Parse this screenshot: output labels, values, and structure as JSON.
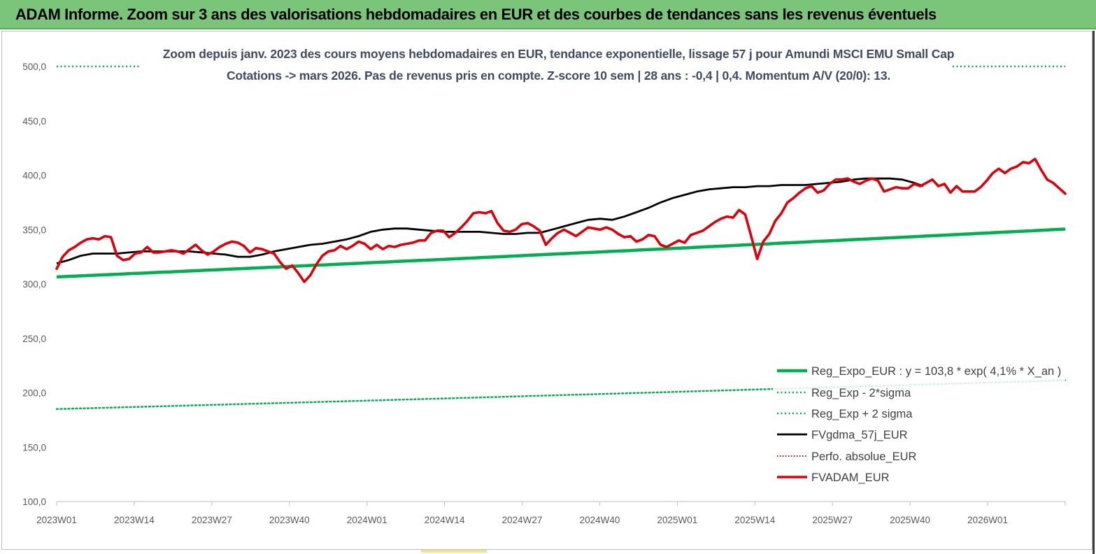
{
  "banner": {
    "title": "ADAM Informe. Zoom sur 3 ans des valorisations hebdomadaires en EUR et des courbes de tendances sans les revenus éventuels"
  },
  "colors": {
    "banner": "#7ac57a",
    "reg_expo": "#00b050",
    "gdma": "#000000",
    "fvadam": "#e0000c",
    "perfo": "#c00000",
    "subtitle": "#3f4b63"
  },
  "chart_data": {
    "type": "line",
    "title": "Zoom depuis janv. 2023 des cours moyens hebdomadaires en EUR, tendance exponentielle, lissage 57 j pour Amundi MSCI EMU Small Cap",
    "subtitle": "Cotations -> mars 2026. Pas de revenus pris en compte. Z-score 10 sem  | 28 ans : -0,4 | 0,4. Momentum A/V (20/0): 13.",
    "xlabel": "",
    "ylabel": "",
    "ylim": [
      100,
      500
    ],
    "y_ticks": [
      "100,0",
      "150,0",
      "200,0",
      "250,0",
      "300,0",
      "350,0",
      "400,0",
      "450,0",
      "500,0"
    ],
    "x_tick_labels": [
      "2023W01",
      "2023W14",
      "2023W27",
      "2023W40",
      "2024W01",
      "2024W14",
      "2024W27",
      "2024W40",
      "2025W01",
      "2025W14",
      "2025W27",
      "2025W40",
      "2026W01"
    ],
    "weeks_count": 170,
    "grid": false,
    "legend_position": "bottom-right",
    "series": [
      {
        "name": "Reg_Expo_EUR : y = 103,8 * exp( 4,1% *  X_an )",
        "style": "solid-thick",
        "start": [
          0,
          306.5
        ],
        "end": [
          169,
          350.5
        ]
      },
      {
        "name": "Reg_Exp - 2*sigma",
        "style": "dotted",
        "start": [
          0,
          185
        ],
        "end": [
          169,
          211.5
        ]
      },
      {
        "name": "Reg_Exp + 2 sigma",
        "style": "dotted",
        "start": [
          0,
          500
        ],
        "end": [
          169,
          500
        ]
      },
      {
        "name": "FVgdma_57j_EUR",
        "style": "solid",
        "points": [
          [
            0,
            319
          ],
          [
            4,
            322
          ],
          [
            8,
            326
          ],
          [
            12,
            328
          ],
          [
            16,
            328
          ],
          [
            20,
            328
          ],
          [
            24,
            329
          ],
          [
            28,
            330
          ],
          [
            32,
            330
          ],
          [
            36,
            330
          ],
          [
            40,
            330
          ],
          [
            44,
            330
          ],
          [
            48,
            329
          ],
          [
            52,
            328
          ],
          [
            56,
            327
          ],
          [
            60,
            325
          ],
          [
            64,
            325
          ],
          [
            68,
            327
          ],
          [
            72,
            330
          ],
          [
            76,
            332
          ],
          [
            80,
            334
          ],
          [
            84,
            336
          ],
          [
            88,
            337
          ],
          [
            92,
            339
          ],
          [
            96,
            341
          ],
          [
            100,
            344
          ],
          [
            104,
            348
          ],
          [
            108,
            350
          ],
          [
            112,
            351
          ],
          [
            116,
            351
          ],
          [
            120,
            350
          ],
          [
            124,
            349
          ],
          [
            128,
            348
          ],
          [
            132,
            348
          ],
          [
            136,
            348
          ],
          [
            140,
            348
          ],
          [
            144,
            347
          ],
          [
            148,
            346
          ],
          [
            152,
            346
          ],
          [
            156,
            347
          ],
          [
            160,
            347
          ],
          [
            164,
            350
          ],
          [
            168,
            353
          ],
          [
            172,
            356
          ],
          [
            176,
            359
          ],
          [
            180,
            360
          ],
          [
            184,
            359
          ],
          [
            188,
            362
          ],
          [
            192,
            366
          ],
          [
            196,
            370
          ],
          [
            200,
            375
          ],
          [
            204,
            379
          ],
          [
            208,
            382
          ],
          [
            212,
            385
          ],
          [
            216,
            387
          ],
          [
            220,
            388
          ],
          [
            224,
            389
          ],
          [
            228,
            389
          ],
          [
            232,
            390
          ],
          [
            236,
            390
          ],
          [
            240,
            391
          ],
          [
            244,
            391
          ],
          [
            248,
            391
          ],
          [
            252,
            392
          ],
          [
            256,
            393
          ],
          [
            260,
            394
          ],
          [
            264,
            396
          ],
          [
            268,
            397
          ],
          [
            272,
            397
          ],
          [
            276,
            397
          ],
          [
            280,
            396
          ],
          [
            284,
            393
          ],
          [
            287,
            390
          ]
        ]
      },
      {
        "name": "Perfo. absolue_EUR",
        "style": "dotted",
        "points": []
      },
      {
        "name": "FVADAM_EUR",
        "style": "solid-thick",
        "points": [
          [
            0,
            314
          ],
          [
            2,
            325
          ],
          [
            4,
            331
          ],
          [
            6,
            334
          ],
          [
            8,
            338
          ],
          [
            10,
            341
          ],
          [
            12,
            342
          ],
          [
            14,
            341
          ],
          [
            16,
            344
          ],
          [
            18,
            343
          ],
          [
            20,
            326
          ],
          [
            22,
            322
          ],
          [
            24,
            323
          ],
          [
            26,
            328
          ],
          [
            28,
            329
          ],
          [
            30,
            334
          ],
          [
            32,
            329
          ],
          [
            34,
            329
          ],
          [
            36,
            330
          ],
          [
            38,
            331
          ],
          [
            40,
            330
          ],
          [
            42,
            328
          ],
          [
            44,
            332
          ],
          [
            46,
            336
          ],
          [
            48,
            331
          ],
          [
            50,
            327
          ],
          [
            52,
            330
          ],
          [
            54,
            334
          ],
          [
            56,
            337
          ],
          [
            58,
            339
          ],
          [
            60,
            338
          ],
          [
            62,
            335
          ],
          [
            64,
            329
          ],
          [
            66,
            333
          ],
          [
            68,
            332
          ],
          [
            70,
            330
          ],
          [
            72,
            328
          ],
          [
            74,
            320
          ],
          [
            76,
            314
          ],
          [
            78,
            317
          ],
          [
            80,
            310
          ],
          [
            82,
            302
          ],
          [
            84,
            308
          ],
          [
            86,
            318
          ],
          [
            88,
            326
          ],
          [
            90,
            330
          ],
          [
            92,
            331
          ],
          [
            94,
            335
          ],
          [
            96,
            332
          ],
          [
            98,
            335
          ],
          [
            100,
            339
          ],
          [
            102,
            337
          ],
          [
            104,
            332
          ],
          [
            106,
            336
          ],
          [
            108,
            332
          ],
          [
            110,
            335
          ],
          [
            112,
            334
          ],
          [
            114,
            336
          ],
          [
            116,
            337
          ],
          [
            118,
            338
          ],
          [
            120,
            340
          ],
          [
            122,
            340
          ],
          [
            124,
            347
          ],
          [
            126,
            349
          ],
          [
            128,
            349
          ],
          [
            130,
            343
          ],
          [
            132,
            347
          ],
          [
            134,
            352
          ],
          [
            136,
            358
          ],
          [
            138,
            365
          ],
          [
            140,
            366
          ],
          [
            142,
            365
          ],
          [
            144,
            367
          ],
          [
            146,
            356
          ],
          [
            148,
            349
          ],
          [
            150,
            348
          ],
          [
            152,
            350
          ],
          [
            154,
            355
          ],
          [
            156,
            356
          ],
          [
            158,
            353
          ],
          [
            160,
            349
          ],
          [
            162,
            336
          ],
          [
            164,
            342
          ],
          [
            166,
            347
          ],
          [
            168,
            350
          ],
          [
            170,
            347
          ],
          [
            172,
            344
          ],
          [
            174,
            348
          ],
          [
            176,
            352
          ],
          [
            178,
            351
          ],
          [
            180,
            350
          ],
          [
            182,
            352
          ],
          [
            184,
            350
          ],
          [
            186,
            346
          ],
          [
            188,
            343
          ],
          [
            190,
            344
          ],
          [
            192,
            339
          ],
          [
            194,
            341
          ],
          [
            196,
            345
          ],
          [
            198,
            344
          ],
          [
            200,
            336
          ],
          [
            202,
            334
          ],
          [
            204,
            337
          ],
          [
            206,
            340
          ],
          [
            208,
            338
          ],
          [
            210,
            345
          ],
          [
            212,
            347
          ],
          [
            214,
            349
          ],
          [
            216,
            353
          ],
          [
            218,
            357
          ],
          [
            220,
            360
          ],
          [
            222,
            362
          ],
          [
            224,
            361
          ],
          [
            226,
            368
          ],
          [
            228,
            364
          ],
          [
            230,
            344
          ],
          [
            232,
            323
          ],
          [
            234,
            339
          ],
          [
            236,
            346
          ],
          [
            238,
            358
          ],
          [
            240,
            365
          ],
          [
            242,
            375
          ],
          [
            244,
            379
          ],
          [
            246,
            384
          ],
          [
            248,
            388
          ],
          [
            250,
            390
          ],
          [
            252,
            384
          ],
          [
            254,
            386
          ],
          [
            256,
            392
          ],
          [
            258,
            396
          ],
          [
            260,
            396
          ],
          [
            262,
            397
          ],
          [
            264,
            394
          ],
          [
            266,
            392
          ],
          [
            268,
            395
          ],
          [
            270,
            397
          ],
          [
            272,
            395
          ],
          [
            274,
            385
          ],
          [
            276,
            387
          ],
          [
            278,
            389
          ],
          [
            280,
            388
          ],
          [
            282,
            388
          ],
          [
            284,
            392
          ],
          [
            286,
            390
          ],
          [
            288,
            393
          ],
          [
            290,
            396
          ],
          [
            292,
            390
          ],
          [
            294,
            392
          ],
          [
            296,
            384
          ],
          [
            298,
            390
          ],
          [
            300,
            385
          ],
          [
            302,
            385
          ],
          [
            304,
            385
          ],
          [
            306,
            389
          ],
          [
            308,
            395
          ],
          [
            310,
            402
          ],
          [
            312,
            406
          ],
          [
            314,
            402
          ],
          [
            316,
            406
          ],
          [
            318,
            408
          ],
          [
            320,
            412
          ],
          [
            322,
            411
          ],
          [
            324,
            415
          ],
          [
            326,
            405
          ],
          [
            328,
            396
          ],
          [
            330,
            393
          ],
          [
            332,
            388
          ],
          [
            334,
            383
          ]
        ]
      }
    ]
  }
}
